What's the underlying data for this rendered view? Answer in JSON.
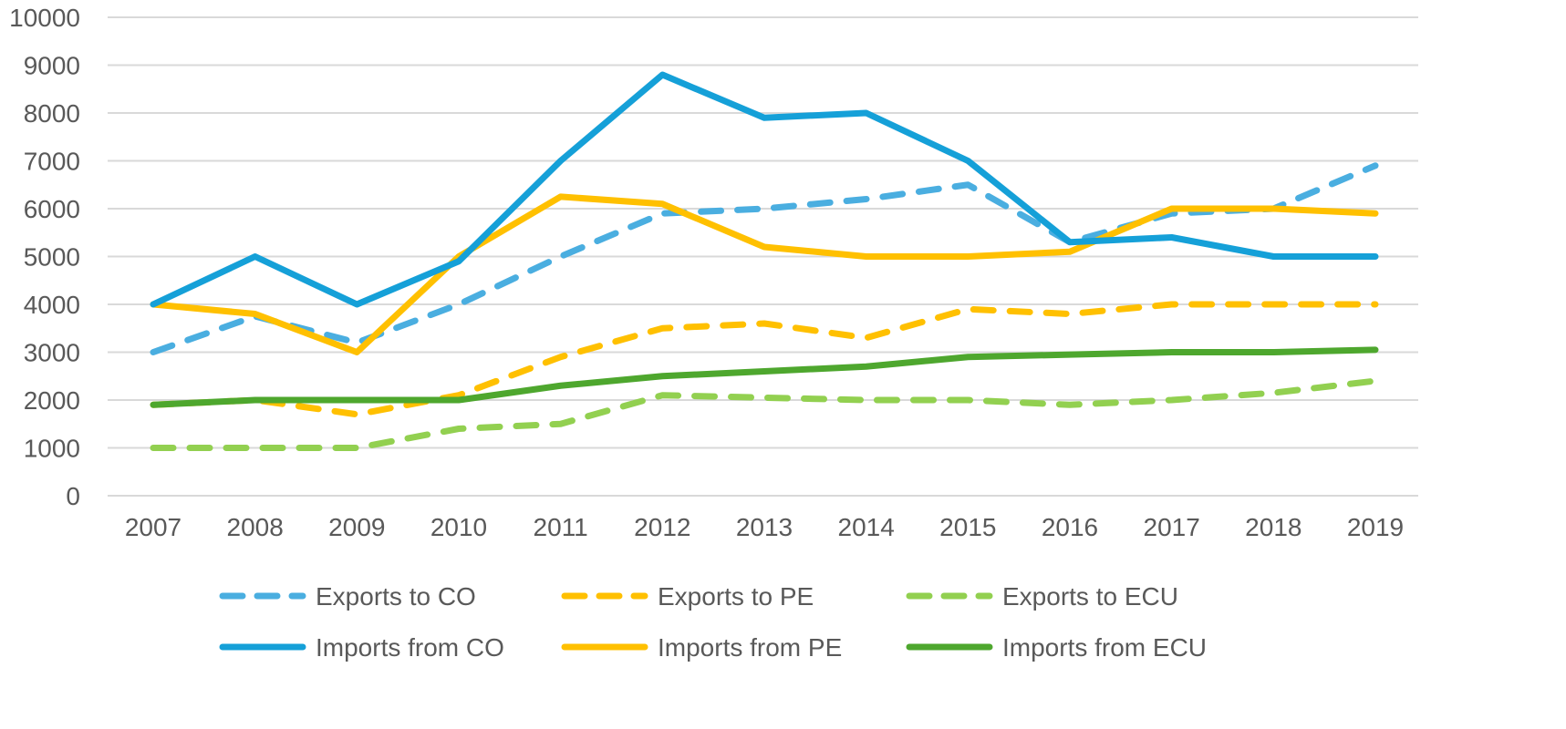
{
  "chart_data": {
    "type": "line",
    "title": "",
    "xlabel": "",
    "ylabel": "",
    "ylim": [
      0,
      10000
    ],
    "yticks": [
      "0",
      "1000",
      "2000",
      "3000",
      "4000",
      "5000",
      "6000",
      "7000",
      "8000",
      "9000",
      "10000"
    ],
    "categories": [
      "2007",
      "2008",
      "2009",
      "2010",
      "2011",
      "2012",
      "2013",
      "2014",
      "2015",
      "2016",
      "2017",
      "2018",
      "2019"
    ],
    "grid": true,
    "legend_position": "bottom",
    "series": [
      {
        "name": "Exports to CO",
        "color": "#4AAEE0",
        "dashed": true,
        "values": [
          3000,
          3750,
          3200,
          4000,
          5000,
          5900,
          6000,
          6200,
          6500,
          5300,
          5900,
          6000,
          6900
        ]
      },
      {
        "name": "Exports to PE",
        "color": "#FFC000",
        "dashed": true,
        "values": [
          1900,
          2000,
          1700,
          2100,
          2900,
          3500,
          3600,
          3300,
          3900,
          3800,
          4000,
          4000,
          4000
        ]
      },
      {
        "name": "Exports to ECU",
        "color": "#92D050",
        "dashed": true,
        "values": [
          1000,
          1000,
          1000,
          1400,
          1500,
          2100,
          2050,
          2000,
          2000,
          1900,
          2000,
          2150,
          2400
        ]
      },
      {
        "name": "Imports from CO",
        "color": "#15A0D8",
        "dashed": false,
        "values": [
          4000,
          5000,
          4000,
          4900,
          7000,
          8800,
          7900,
          8000,
          7000,
          5300,
          5400,
          5000,
          5000
        ]
      },
      {
        "name": "Imports from PE",
        "color": "#FFC000",
        "dashed": false,
        "values": [
          4000,
          3800,
          3000,
          5000,
          6250,
          6100,
          5200,
          5000,
          5000,
          5100,
          6000,
          6000,
          5900
        ]
      },
      {
        "name": "Imports from ECU",
        "color": "#4EA72E",
        "dashed": false,
        "values": [
          1900,
          2000,
          2000,
          2000,
          2300,
          2500,
          2600,
          2700,
          2900,
          2950,
          3000,
          3000,
          3050
        ]
      }
    ]
  }
}
